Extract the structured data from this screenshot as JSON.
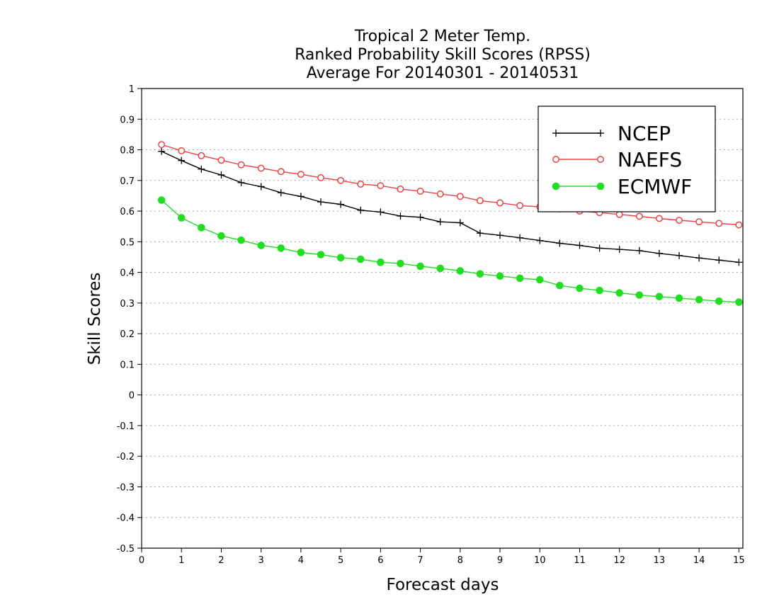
{
  "chart_data": {
    "type": "line",
    "title_lines": [
      "Tropical 2 Meter Temp.",
      "Ranked Probability Skill Scores (RPSS)",
      "Average For 20140301 - 20140531"
    ],
    "xlabel": "Forecast days",
    "ylabel": "Skill Scores",
    "xlim": [
      0,
      15.1
    ],
    "ylim": [
      -0.5,
      1
    ],
    "x_ticks": [
      0,
      1,
      2,
      3,
      4,
      5,
      6,
      7,
      8,
      9,
      10,
      11,
      12,
      13,
      14,
      15
    ],
    "x_tick_labels": [
      "0",
      "1",
      "2",
      "3",
      "4",
      "5",
      "6",
      "7",
      "8",
      "9",
      "10",
      "11",
      "12",
      "13",
      "14",
      "15"
    ],
    "y_ticks": [
      1,
      0.9,
      0.8,
      0.7,
      0.6,
      0.5,
      0.4,
      0.3,
      0.2,
      0.1,
      0,
      -0.1,
      -0.2,
      -0.3,
      -0.4,
      -0.5
    ],
    "y_tick_labels": [
      "1",
      "0.9",
      "0.8",
      "0.7",
      "0.6",
      "0.5",
      "0.4",
      "0.3",
      "0.2",
      "0.1",
      "0",
      "-0.1",
      "-0.2",
      "-0.3",
      "-0.4",
      "-0.5"
    ],
    "grid": "horizontal dotted",
    "legend_position": "top-right",
    "x": [
      0.5,
      1.0,
      1.5,
      2.0,
      2.5,
      3.0,
      3.5,
      4.0,
      4.5,
      5.0,
      5.5,
      6.0,
      6.5,
      7.0,
      7.5,
      8.0,
      8.5,
      9.0,
      9.5,
      10.0,
      10.5,
      11.0,
      11.5,
      12.0,
      12.5,
      13.0,
      13.5,
      14.0,
      14.5,
      15.0
    ],
    "series": [
      {
        "name": "NCEP",
        "color": "#000000",
        "marker": "plus",
        "values": [
          0.795,
          0.765,
          0.737,
          0.718,
          0.693,
          0.68,
          0.66,
          0.648,
          0.63,
          0.622,
          0.603,
          0.597,
          0.584,
          0.58,
          0.565,
          0.562,
          0.528,
          0.521,
          0.513,
          0.504,
          0.495,
          0.488,
          0.479,
          0.475,
          0.471,
          0.462,
          0.455,
          0.447,
          0.44,
          0.433
        ]
      },
      {
        "name": "NAEFS",
        "color": "#e84343",
        "marker": "open-circle",
        "values": [
          0.817,
          0.797,
          0.781,
          0.766,
          0.751,
          0.74,
          0.729,
          0.72,
          0.709,
          0.7,
          0.688,
          0.683,
          0.672,
          0.665,
          0.656,
          0.648,
          0.634,
          0.627,
          0.618,
          0.614,
          0.607,
          0.6,
          0.595,
          0.589,
          0.583,
          0.576,
          0.57,
          0.565,
          0.56,
          0.555
        ]
      },
      {
        "name": "ECMWF",
        "color": "#22dd22",
        "marker": "filled-circle",
        "values": [
          0.636,
          0.578,
          0.546,
          0.519,
          0.505,
          0.488,
          0.479,
          0.465,
          0.458,
          0.448,
          0.443,
          0.433,
          0.429,
          0.42,
          0.413,
          0.405,
          0.395,
          0.388,
          0.381,
          0.376,
          0.357,
          0.348,
          0.341,
          0.333,
          0.326,
          0.321,
          0.316,
          0.311,
          0.306,
          0.303
        ]
      }
    ]
  }
}
